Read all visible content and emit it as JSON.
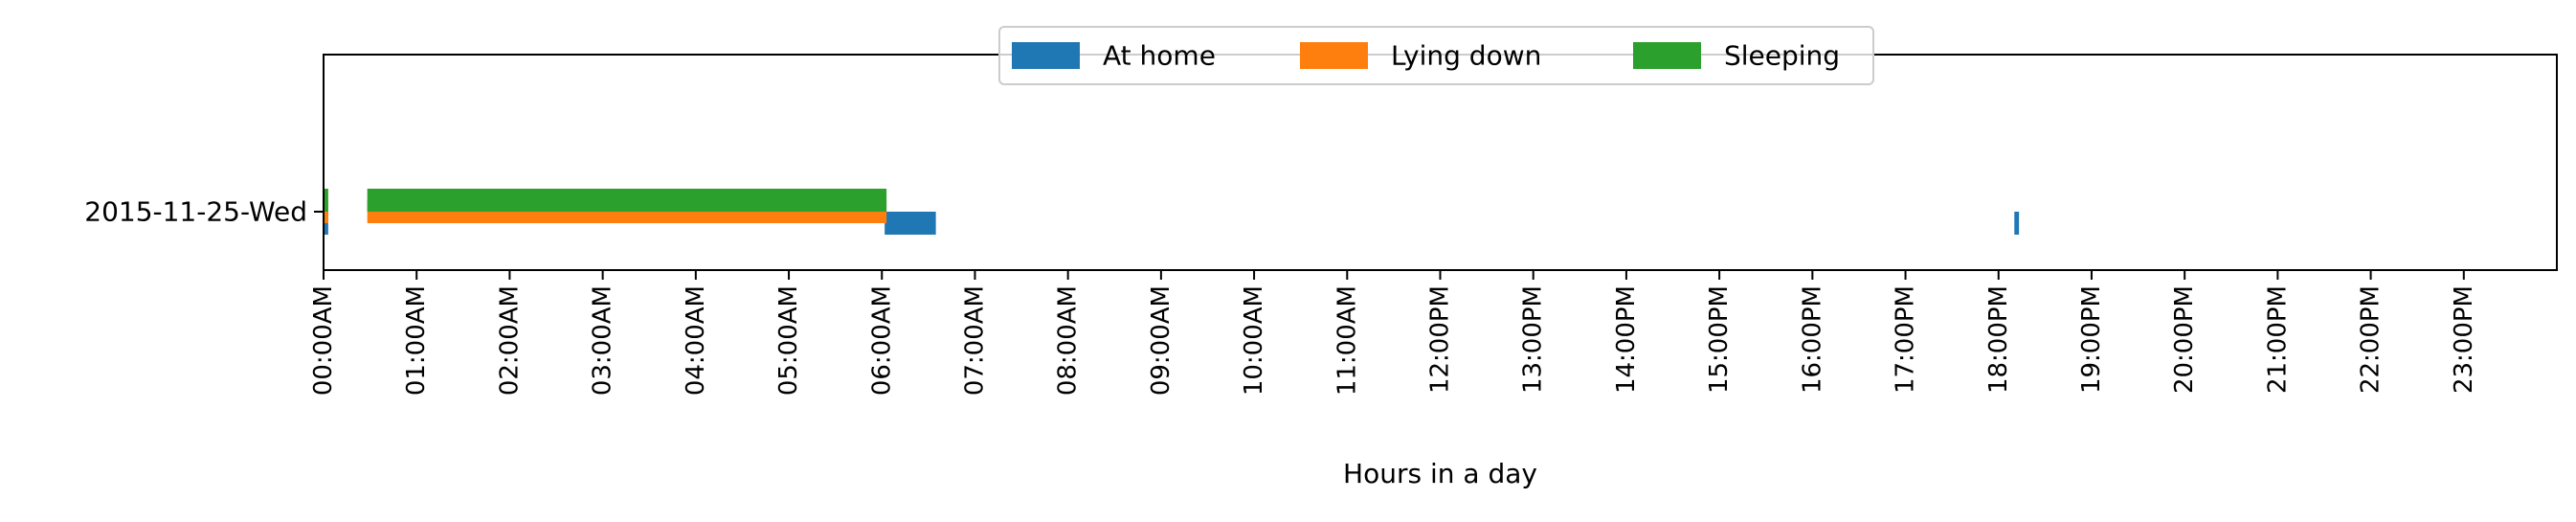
{
  "chart_data": {
    "type": "bar",
    "orientation": "horizontal",
    "title": "",
    "xlabel": "Hours in a day",
    "ylabel": "",
    "xlim": [
      0,
      24
    ],
    "x_unit": "hours",
    "categories": [
      "2015-11-25-Wed"
    ],
    "x_ticks": [
      "00:00AM",
      "01:00AM",
      "02:00AM",
      "03:00AM",
      "04:00AM",
      "05:00AM",
      "06:00AM",
      "07:00AM",
      "08:00AM",
      "09:00AM",
      "10:00AM",
      "11:00AM",
      "12:00PM",
      "13:00PM",
      "14:00PM",
      "15:00PM",
      "16:00PM",
      "17:00PM",
      "18:00PM",
      "19:00PM",
      "20:00PM",
      "21:00PM",
      "22:00PM",
      "23:00PM"
    ],
    "grid": false,
    "legend_position": "top-center",
    "series": [
      {
        "name": "At home",
        "color": "#1f77b4",
        "intervals": [
          {
            "category": "2015-11-25-Wed",
            "start": 0.0,
            "end": 0.05
          },
          {
            "category": "2015-11-25-Wed",
            "start": 6.03,
            "end": 6.58
          },
          {
            "category": "2015-11-25-Wed",
            "start": 18.17,
            "end": 18.22
          }
        ]
      },
      {
        "name": "Lying down",
        "color": "#ff7f0e",
        "intervals": [
          {
            "category": "2015-11-25-Wed",
            "start": 0.0,
            "end": 0.05
          },
          {
            "category": "2015-11-25-Wed",
            "start": 0.47,
            "end": 6.05
          }
        ]
      },
      {
        "name": "Sleeping",
        "color": "#2ca02c",
        "intervals": [
          {
            "category": "2015-11-25-Wed",
            "start": 0.0,
            "end": 0.05
          },
          {
            "category": "2015-11-25-Wed",
            "start": 0.47,
            "end": 6.05
          }
        ]
      }
    ]
  }
}
